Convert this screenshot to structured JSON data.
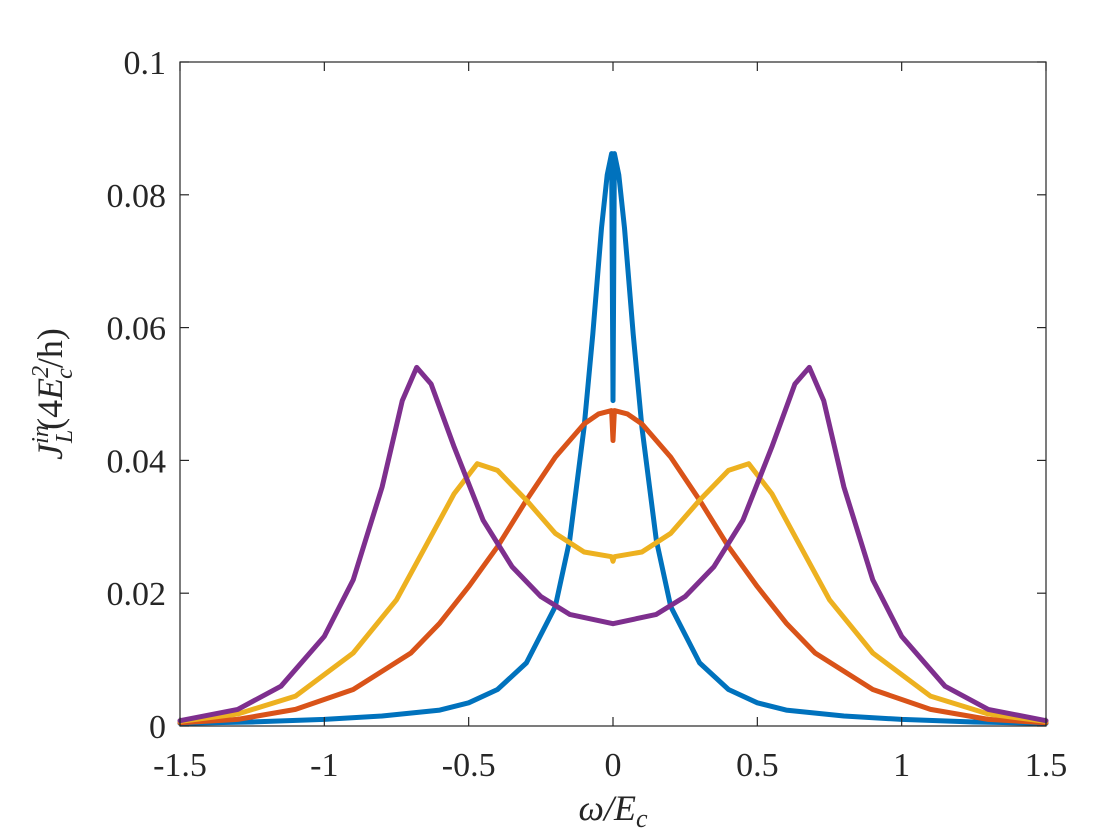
{
  "chart_data": {
    "type": "line",
    "title": "",
    "xlabel": {
      "sym": "ω",
      "rest": "/E",
      "sub": "c"
    },
    "ylabel": {
      "sym": "J",
      "sup": "in",
      "sub": "L",
      "pre": "(4",
      "E": "E",
      "esup": "2",
      "esub": "c",
      "post": "/h)"
    },
    "xlim": [
      -1.5,
      1.5
    ],
    "ylim": [
      0,
      0.1
    ],
    "xticks": [
      -1.5,
      -1,
      -0.5,
      0,
      0.5,
      1,
      1.5
    ],
    "xtick_labels": [
      "-1.5",
      "-1",
      "-0.5",
      "0",
      "0.5",
      "1",
      "1.5"
    ],
    "yticks": [
      0,
      0.02,
      0.04,
      0.06,
      0.08,
      0.1
    ],
    "ytick_labels": [
      "0",
      "0.02",
      "0.04",
      "0.06",
      "0.08",
      "0.1"
    ],
    "grid": false,
    "legend": "none",
    "series": [
      {
        "color": "#0072BD",
        "points": [
          [
            -1.5,
            0.0004
          ],
          [
            -1.25,
            0.0006
          ],
          [
            -1.0,
            0.001
          ],
          [
            -0.8,
            0.0015
          ],
          [
            -0.6,
            0.0024
          ],
          [
            -0.5,
            0.0035
          ],
          [
            -0.4,
            0.0055
          ],
          [
            -0.3,
            0.0095
          ],
          [
            -0.2,
            0.018
          ],
          [
            -0.15,
            0.028
          ],
          [
            -0.1,
            0.045
          ],
          [
            -0.07,
            0.059
          ],
          [
            -0.04,
            0.075
          ],
          [
            -0.02,
            0.083
          ],
          [
            -0.005,
            0.0862
          ],
          [
            0.0,
            0.049
          ],
          [
            0.005,
            0.0862
          ],
          [
            0.02,
            0.083
          ],
          [
            0.04,
            0.075
          ],
          [
            0.07,
            0.059
          ],
          [
            0.1,
            0.045
          ],
          [
            0.15,
            0.028
          ],
          [
            0.2,
            0.018
          ],
          [
            0.3,
            0.0095
          ],
          [
            0.4,
            0.0055
          ],
          [
            0.5,
            0.0035
          ],
          [
            0.6,
            0.0024
          ],
          [
            0.8,
            0.0015
          ],
          [
            1.0,
            0.001
          ],
          [
            1.25,
            0.0006
          ],
          [
            1.5,
            0.0004
          ]
        ]
      },
      {
        "color": "#D95319",
        "points": [
          [
            -1.5,
            0.0005
          ],
          [
            -1.3,
            0.001
          ],
          [
            -1.1,
            0.0025
          ],
          [
            -0.9,
            0.0055
          ],
          [
            -0.7,
            0.011
          ],
          [
            -0.6,
            0.0155
          ],
          [
            -0.5,
            0.021
          ],
          [
            -0.4,
            0.027
          ],
          [
            -0.3,
            0.034
          ],
          [
            -0.2,
            0.0405
          ],
          [
            -0.1,
            0.0455
          ],
          [
            -0.05,
            0.047
          ],
          [
            -0.005,
            0.0475
          ],
          [
            0.0,
            0.043
          ],
          [
            0.005,
            0.0475
          ],
          [
            0.05,
            0.047
          ],
          [
            0.1,
            0.0455
          ],
          [
            0.2,
            0.0405
          ],
          [
            0.3,
            0.034
          ],
          [
            0.4,
            0.027
          ],
          [
            0.5,
            0.021
          ],
          [
            0.6,
            0.0155
          ],
          [
            0.7,
            0.011
          ],
          [
            0.9,
            0.0055
          ],
          [
            1.1,
            0.0025
          ],
          [
            1.3,
            0.001
          ],
          [
            1.5,
            0.0005
          ]
        ]
      },
      {
        "color": "#EDB120",
        "points": [
          [
            -1.5,
            0.0007
          ],
          [
            -1.3,
            0.0018
          ],
          [
            -1.1,
            0.0045
          ],
          [
            -0.9,
            0.011
          ],
          [
            -0.75,
            0.019
          ],
          [
            -0.65,
            0.027
          ],
          [
            -0.55,
            0.035
          ],
          [
            -0.47,
            0.0395
          ],
          [
            -0.4,
            0.0385
          ],
          [
            -0.3,
            0.034
          ],
          [
            -0.2,
            0.029
          ],
          [
            -0.1,
            0.0262
          ],
          [
            -0.005,
            0.0255
          ],
          [
            0.0,
            0.0248
          ],
          [
            0.005,
            0.0255
          ],
          [
            0.1,
            0.0262
          ],
          [
            0.2,
            0.029
          ],
          [
            0.3,
            0.034
          ],
          [
            0.4,
            0.0385
          ],
          [
            0.47,
            0.0395
          ],
          [
            0.55,
            0.035
          ],
          [
            0.65,
            0.027
          ],
          [
            0.75,
            0.019
          ],
          [
            0.9,
            0.011
          ],
          [
            1.1,
            0.0045
          ],
          [
            1.3,
            0.0018
          ],
          [
            1.5,
            0.0007
          ]
        ]
      },
      {
        "color": "#7E2F8E",
        "points": [
          [
            -1.5,
            0.0008
          ],
          [
            -1.3,
            0.0025
          ],
          [
            -1.15,
            0.006
          ],
          [
            -1.0,
            0.0135
          ],
          [
            -0.9,
            0.022
          ],
          [
            -0.8,
            0.036
          ],
          [
            -0.73,
            0.049
          ],
          [
            -0.68,
            0.054
          ],
          [
            -0.63,
            0.0515
          ],
          [
            -0.55,
            0.042
          ],
          [
            -0.45,
            0.031
          ],
          [
            -0.35,
            0.024
          ],
          [
            -0.25,
            0.0195
          ],
          [
            -0.15,
            0.0168
          ],
          [
            0.0,
            0.0154
          ],
          [
            0.15,
            0.0168
          ],
          [
            0.25,
            0.0195
          ],
          [
            0.35,
            0.024
          ],
          [
            0.45,
            0.031
          ],
          [
            0.55,
            0.042
          ],
          [
            0.63,
            0.0515
          ],
          [
            0.68,
            0.054
          ],
          [
            0.73,
            0.049
          ],
          [
            0.8,
            0.036
          ],
          [
            0.9,
            0.022
          ],
          [
            1.0,
            0.0135
          ],
          [
            1.15,
            0.006
          ],
          [
            1.3,
            0.0025
          ],
          [
            1.5,
            0.0008
          ]
        ]
      }
    ]
  }
}
